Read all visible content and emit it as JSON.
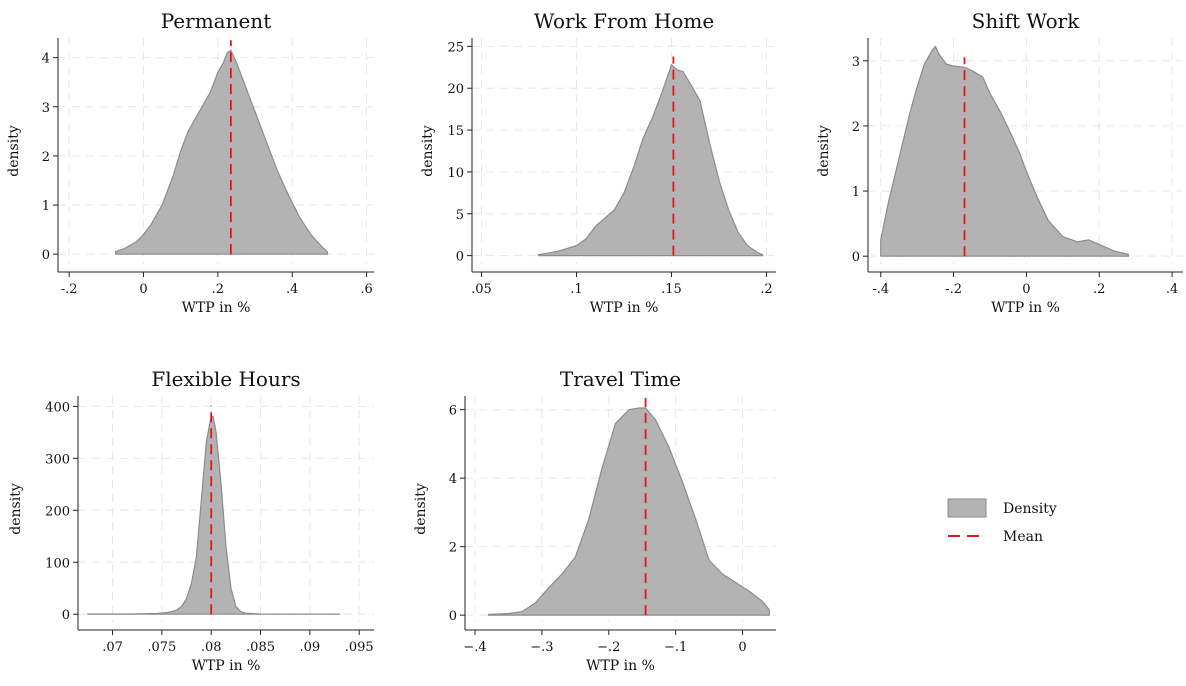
{
  "colors": {
    "density_fill": "#b3b3b3",
    "density_stroke": "#8c8c8c",
    "mean_line": "#e8141b",
    "grid": "#e6e6e6"
  },
  "legend": {
    "items": [
      {
        "label": "Density",
        "icon": "gray-filled-box"
      },
      {
        "label": "Mean",
        "icon": "red-dashed-line"
      }
    ]
  },
  "chart_data": [
    {
      "type": "area",
      "title": "Permanent",
      "xlabel": "WTP in %",
      "ylabel": "density",
      "xlim": [
        -0.23,
        0.62
      ],
      "ylim": [
        -0.2,
        4.4
      ],
      "xticks": [
        -0.2,
        0,
        0.2,
        0.4,
        0.6
      ],
      "xtick_labels": [
        "-.2",
        "0",
        ".2",
        ".4",
        ".6"
      ],
      "yticks": [
        0,
        1,
        2,
        3,
        4
      ],
      "ytick_labels": [
        "0",
        "1",
        "2",
        "3",
        "4"
      ],
      "mean": 0.235,
      "x": [
        -0.075,
        -0.05,
        -0.02,
        0,
        0.02,
        0.05,
        0.08,
        0.1,
        0.12,
        0.15,
        0.18,
        0.2,
        0.215,
        0.225,
        0.235,
        0.25,
        0.27,
        0.3,
        0.33,
        0.36,
        0.39,
        0.42,
        0.45,
        0.48,
        0.495
      ],
      "y": [
        0.05,
        0.12,
        0.25,
        0.4,
        0.6,
        1.0,
        1.6,
        2.1,
        2.5,
        2.9,
        3.3,
        3.7,
        3.9,
        4.1,
        4.15,
        3.9,
        3.5,
        2.9,
        2.3,
        1.7,
        1.2,
        0.75,
        0.4,
        0.15,
        0.05
      ]
    },
    {
      "type": "area",
      "title": "Work From Home",
      "xlabel": "WTP in %",
      "ylabel": "density",
      "xlim": [
        0.045,
        0.205
      ],
      "ylim": [
        -1,
        26
      ],
      "xticks": [
        0.05,
        0.1,
        0.15,
        0.2
      ],
      "xtick_labels": [
        ".05",
        ".1",
        ".15",
        ".2"
      ],
      "yticks": [
        0,
        5,
        10,
        15,
        20,
        25
      ],
      "ytick_labels": [
        "0",
        "5",
        "10",
        "15",
        "20",
        "25"
      ],
      "mean": 0.151,
      "x": [
        0.08,
        0.09,
        0.1,
        0.105,
        0.11,
        0.115,
        0.12,
        0.125,
        0.13,
        0.135,
        0.14,
        0.145,
        0.15,
        0.153,
        0.156,
        0.16,
        0.165,
        0.17,
        0.175,
        0.18,
        0.185,
        0.19,
        0.195,
        0.198
      ],
      "y": [
        0.1,
        0.5,
        1.2,
        2.0,
        3.5,
        4.5,
        5.5,
        7.5,
        10.5,
        14,
        16.5,
        19.5,
        22.8,
        22.2,
        22.0,
        20.5,
        18.5,
        13.5,
        9.0,
        5.5,
        2.8,
        1.2,
        0.4,
        0.1
      ]
    },
    {
      "type": "area",
      "title": "Shift Work",
      "xlabel": "WTP in %",
      "ylabel": "density",
      "xlim": [
        -0.435,
        0.43
      ],
      "ylim": [
        -0.12,
        3.35
      ],
      "xticks": [
        -0.4,
        -0.2,
        0,
        0.2,
        0.4
      ],
      "xtick_labels": [
        "-.4",
        "-.2",
        "0",
        ".2",
        ".4"
      ],
      "yticks": [
        0,
        1,
        2,
        3
      ],
      "ytick_labels": [
        "0",
        "1",
        "2",
        "3"
      ],
      "mean": -0.17,
      "x": [
        -0.4,
        -0.38,
        -0.35,
        -0.32,
        -0.3,
        -0.28,
        -0.26,
        -0.25,
        -0.24,
        -0.22,
        -0.2,
        -0.17,
        -0.15,
        -0.12,
        -0.1,
        -0.07,
        -0.04,
        -0.02,
        0,
        0.03,
        0.06,
        0.1,
        0.14,
        0.17,
        0.2,
        0.24,
        0.28
      ],
      "y": [
        0.25,
        0.8,
        1.5,
        2.2,
        2.6,
        2.95,
        3.15,
        3.22,
        3.1,
        2.95,
        2.92,
        2.9,
        2.85,
        2.75,
        2.5,
        2.2,
        1.85,
        1.6,
        1.3,
        0.9,
        0.55,
        0.3,
        0.22,
        0.25,
        0.18,
        0.08,
        0.03
      ]
    },
    {
      "type": "area",
      "title": "Flexible Hours",
      "xlabel": "WTP in %",
      "ylabel": "density",
      "xlim": [
        0.0665,
        0.0965
      ],
      "ylim": [
        -15,
        420
      ],
      "xticks": [
        0.07,
        0.075,
        0.08,
        0.085,
        0.09,
        0.095
      ],
      "xtick_labels": [
        ".07",
        ".075",
        ".08",
        ".085",
        ".09",
        ".095"
      ],
      "yticks": [
        0,
        100,
        200,
        300,
        400
      ],
      "ytick_labels": [
        "0",
        "100",
        "200",
        "300",
        "400"
      ],
      "mean": 0.08,
      "x": [
        0.0675,
        0.072,
        0.0745,
        0.0755,
        0.076,
        0.0765,
        0.077,
        0.0775,
        0.078,
        0.0785,
        0.079,
        0.0795,
        0.08,
        0.0802,
        0.0805,
        0.081,
        0.0815,
        0.082,
        0.0825,
        0.083,
        0.0835,
        0.085,
        0.093
      ],
      "y": [
        0.5,
        0.5,
        1.5,
        3,
        5,
        8,
        15,
        30,
        60,
        110,
        220,
        330,
        382,
        380,
        350,
        250,
        130,
        50,
        15,
        5,
        2,
        0.5,
        0.2
      ]
    },
    {
      "type": "area",
      "title": "Travel Time",
      "xlabel": "WTP in %",
      "ylabel": "density",
      "xlim": [
        -0.415,
        0.05
      ],
      "ylim": [
        -0.2,
        6.4
      ],
      "xticks": [
        -0.4,
        -0.3,
        -0.2,
        -0.1,
        0
      ],
      "xtick_labels": [
        "−.4",
        "−.3",
        "−.2",
        "−.1",
        "0"
      ],
      "yticks": [
        0,
        2,
        4,
        6
      ],
      "ytick_labels": [
        "0",
        "2",
        "4",
        "6"
      ],
      "mean": -0.145,
      "x": [
        -0.38,
        -0.35,
        -0.33,
        -0.31,
        -0.29,
        -0.27,
        -0.25,
        -0.23,
        -0.21,
        -0.19,
        -0.17,
        -0.155,
        -0.145,
        -0.13,
        -0.11,
        -0.09,
        -0.07,
        -0.05,
        -0.03,
        -0.01,
        0.01,
        0.03,
        0.04
      ],
      "y": [
        0.02,
        0.05,
        0.1,
        0.35,
        0.8,
        1.2,
        1.7,
        2.8,
        4.3,
        5.6,
        6.0,
        6.05,
        6.05,
        5.7,
        4.9,
        3.9,
        2.8,
        1.6,
        1.2,
        0.95,
        0.7,
        0.4,
        0.15
      ]
    }
  ]
}
